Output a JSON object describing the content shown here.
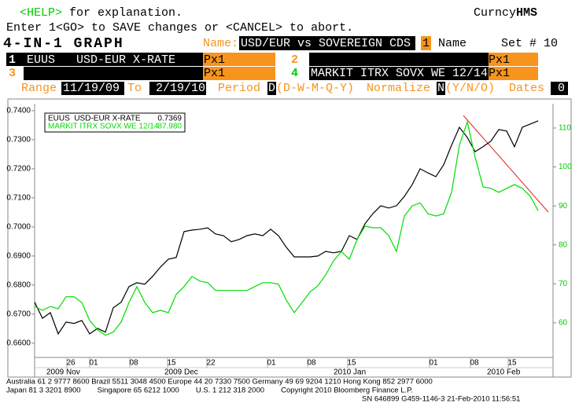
{
  "header": {
    "help_key": "<HELP>",
    "help_text": " for explanation.",
    "security_type": "Curncy",
    "function": "HMS",
    "instruction": "Enter 1<GO> to SAVE changes or <CANCEL> to abort.",
    "title": "4-IN-1 GRAPH",
    "name_label": "Name:",
    "name": "USD/EUR vs SOVEREIGN CDS",
    "name_key": "1",
    "name_button": "Name",
    "set": "Set # 10"
  },
  "securities": [
    {
      "num": "1",
      "ticker": "EUUS   USD-EUR X-RATE",
      "p": "P",
      "mult": "x1"
    },
    {
      "num": "2",
      "p": "P",
      "mult": "x1"
    },
    {
      "num": "3",
      "p": "P",
      "mult": "x1"
    },
    {
      "num": "4",
      "ticker": "MARKIT ITRX SOVX WE 12/14",
      "p": "P",
      "mult": "x1"
    }
  ],
  "controls": {
    "range_label": "Range",
    "from": "11/19/09",
    "to_label": "To",
    "to": "2/19/10",
    "period_label": "Period",
    "period": "D",
    "period_options": "(D-W-M-Q-Y)",
    "normalize_label": "Normalize",
    "normalize": "N",
    "normalize_options": "(Y/N/O)",
    "dates_label": "Dates",
    "dates": "0"
  },
  "chart": {
    "type": "line",
    "xlim": [
      0,
      65.9
    ],
    "ylim": [
      0.6551,
      0.7424
    ],
    "y2lim": [
      51.1,
      116.25
    ],
    "yticks": [
      {
        "value": 0.74,
        "label": "0.7400"
      },
      {
        "value": 0.73,
        "label": "0.7300"
      },
      {
        "value": 0.72,
        "label": "0.7200"
      },
      {
        "value": 0.71,
        "label": "0.7100"
      },
      {
        "value": 0.7,
        "label": "0.7000"
      },
      {
        "value": 0.69,
        "label": "0.6900"
      },
      {
        "value": 0.68,
        "label": "0.6800"
      },
      {
        "value": 0.67,
        "label": "0.6700"
      },
      {
        "value": 0.66,
        "label": "0.6600"
      }
    ],
    "y2ticks": [
      110,
      100,
      90,
      80,
      70,
      60
    ],
    "xticks": [
      {
        "value": 4.6,
        "label": "26"
      },
      {
        "value": 7.5,
        "label": "01"
      },
      {
        "value": 12.6,
        "label": "08"
      },
      {
        "value": 17.4,
        "label": "15"
      },
      {
        "value": 22.4,
        "label": "22"
      },
      {
        "value": 30.1,
        "label": "01"
      },
      {
        "value": 35.2,
        "label": "08"
      },
      {
        "value": 40.3,
        "label": "15"
      },
      {
        "value": 50.7,
        "label": "01"
      },
      {
        "value": 55.9,
        "label": "08"
      },
      {
        "value": 60.7,
        "label": "15"
      }
    ],
    "months": [
      {
        "value": 1.5,
        "label": "2009 Nov"
      },
      {
        "value": 16.5,
        "label": "2009 Dec"
      },
      {
        "value": 38.0,
        "label": "2010 Jan"
      },
      {
        "value": 57.5,
        "label": "2010 Feb"
      }
    ],
    "series": [
      {
        "name": "EUUS  USD-EUR X-RATE",
        "legend_value": "0.7369",
        "color": "#000000",
        "values": [
          0.6741,
          0.6686,
          0.6705,
          0.6632,
          0.6673,
          0.6668,
          0.6678,
          0.6632,
          0.6651,
          0.6638,
          0.6722,
          0.6741,
          0.6795,
          0.6808,
          0.6803,
          0.683,
          0.6862,
          0.6889,
          0.6895,
          0.6984,
          0.6989,
          0.6992,
          0.6997,
          0.6976,
          0.697,
          0.6949,
          0.6957,
          0.697,
          0.6976,
          0.697,
          0.6992,
          0.697,
          0.693,
          0.6897,
          0.6897,
          0.6897,
          0.69,
          0.6916,
          0.6911,
          0.6916,
          0.697,
          0.6957,
          0.7011,
          0.7046,
          0.7073,
          0.7065,
          0.7073,
          0.7105,
          0.7146,
          0.72,
          0.7186,
          0.7173,
          0.7214,
          0.7281,
          0.7343,
          0.7308,
          0.7259,
          0.7276,
          0.7295,
          0.7335,
          0.733,
          0.7276,
          0.7343,
          0.7354,
          0.7365
        ]
      },
      {
        "name": "MARKIT ITRX SOVX WE 12/14",
        "legend_value": "87.980",
        "color": "#00dd00",
        "axis": "y2",
        "values": [
          64.2,
          63.2,
          64.2,
          63.6,
          66.7,
          66.7,
          65.2,
          60.6,
          58.2,
          56.8,
          57.6,
          60.2,
          65.2,
          69.3,
          65.2,
          62.6,
          63.2,
          62.6,
          67.3,
          69.3,
          71.9,
          70.7,
          70.3,
          68.3,
          68.3,
          68.3,
          68.3,
          68.3,
          69.3,
          70.3,
          70.3,
          69.9,
          65.8,
          62.6,
          65.2,
          67.9,
          69.5,
          72.3,
          75.9,
          78.3,
          76.3,
          81.4,
          84.8,
          84.4,
          84.4,
          82.4,
          78.3,
          87.4,
          90.0,
          90.8,
          88.0,
          87.4,
          88.0,
          93.5,
          105.6,
          111.6,
          102.5,
          94.9,
          94.5,
          93.5,
          94.5,
          95.5,
          94.5,
          92.5,
          88.8
        ]
      }
    ]
  },
  "footer": [
    "Australia 61 2 9777 8600 Brazil 5511 3048 4500 Europe 44 20 7330 7500 Germany 49 69 9204 1210 Hong Kong 852 2977 6000",
    "Japan 81 3 3201 8900        Singapore 65 6212 1000        U.S. 1 212 318 2000        Copyright 2010 Bloomberg Finance L.P.",
    "SN 646899 G459-1146-3 21-Feb-2010 11:56:51"
  ]
}
